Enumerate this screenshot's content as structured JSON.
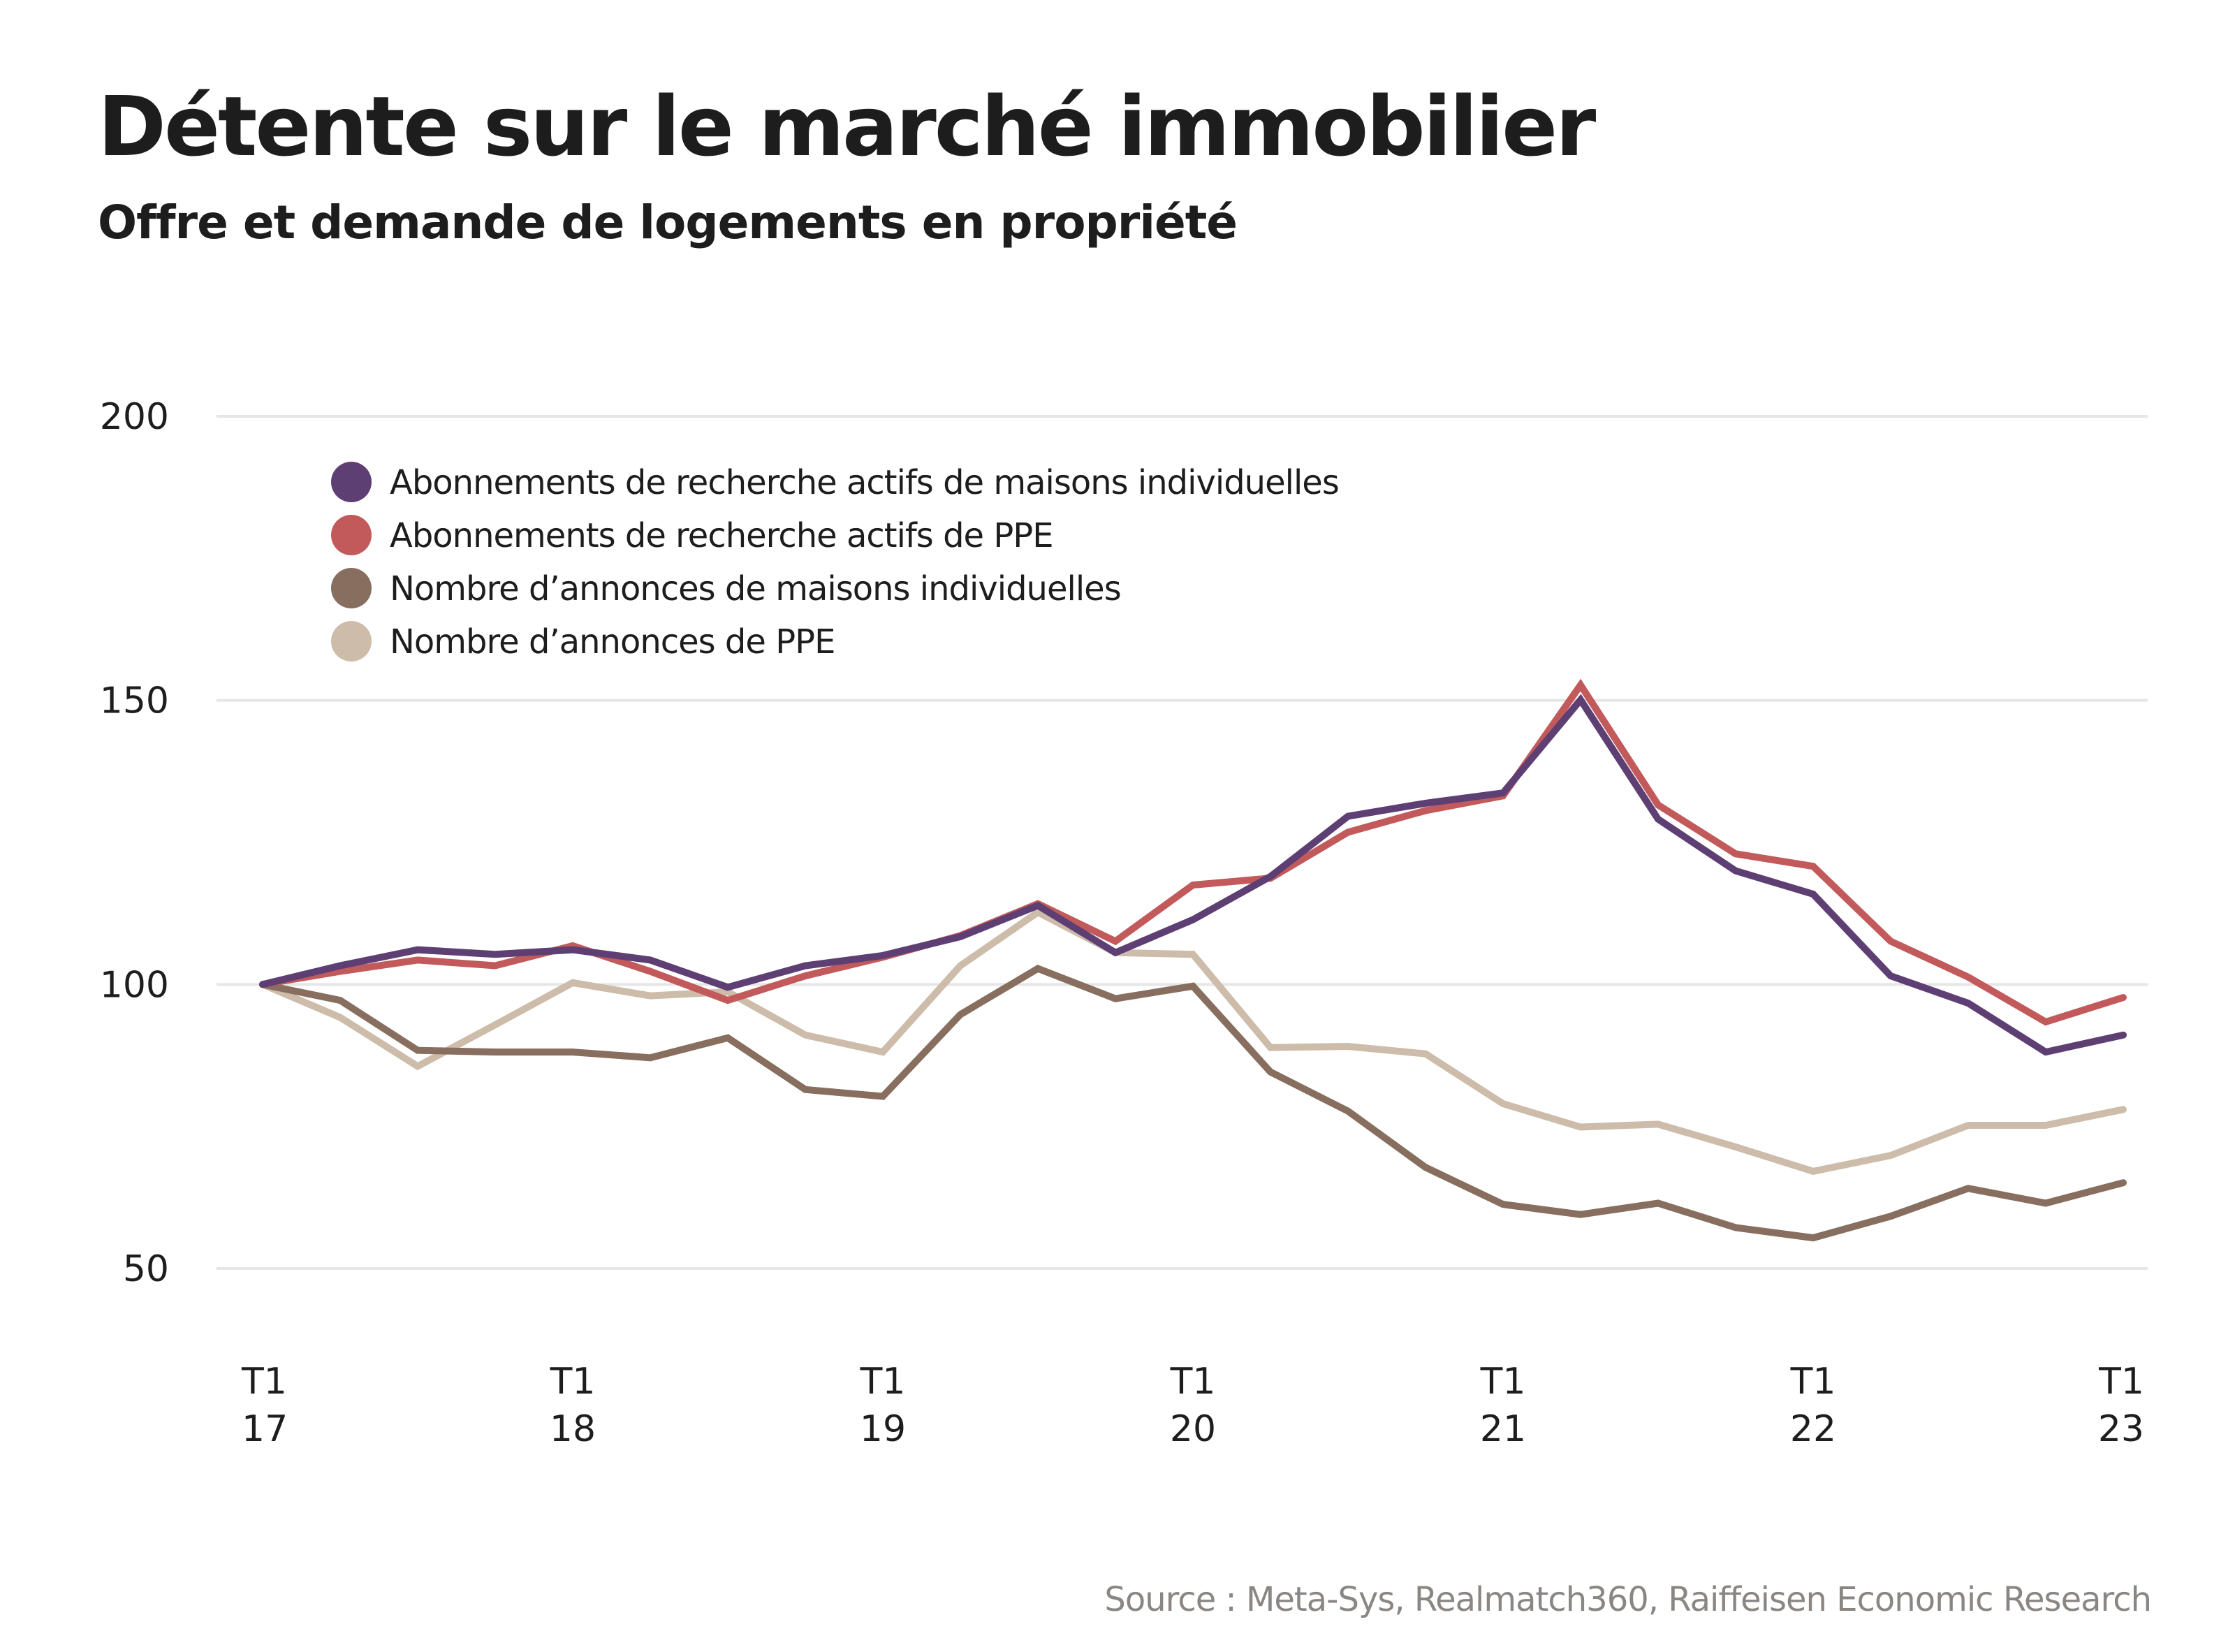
{
  "header": {
    "title": "Détente sur le marché immobilier",
    "subtitle": "Offre et demande de logements en propriété"
  },
  "footer": {
    "source": "Source : Meta-Sys, Realmatch360, Raiffeisen Economic Research"
  },
  "chart_data": {
    "type": "line",
    "title": "Détente sur le marché immobilier",
    "subtitle": "Offre et demande de logements en propriété",
    "xlabel": "",
    "ylabel": "",
    "ylim": [
      50,
      200
    ],
    "yticks": [
      200,
      150,
      100,
      50
    ],
    "grid": true,
    "legend_position": "top-left",
    "x": [
      "T1 17",
      "T2 17",
      "T3 17",
      "T4 17",
      "T1 18",
      "T2 18",
      "T3 18",
      "T4 18",
      "T1 19",
      "T2 19",
      "T3 19",
      "T4 19",
      "T1 20",
      "T2 20",
      "T3 20",
      "T4 20",
      "T1 21",
      "T2 21",
      "T3 21",
      "T4 21",
      "T1 22",
      "T2 22",
      "T3 22",
      "T4 22",
      "T1 23"
    ],
    "xticks": [
      {
        "index": 0,
        "line1": "T1",
        "line2": "17"
      },
      {
        "index": 4,
        "line1": "T1",
        "line2": "18"
      },
      {
        "index": 8,
        "line1": "T1",
        "line2": "19"
      },
      {
        "index": 12,
        "line1": "T1",
        "line2": "20"
      },
      {
        "index": 16,
        "line1": "T1",
        "line2": "21"
      },
      {
        "index": 20,
        "line1": "T1",
        "line2": "22"
      },
      {
        "index": 24,
        "line1": "T1",
        "line2": "23"
      }
    ],
    "series": [
      {
        "name": "Abonnements de recherche actifs de maisons individuelles",
        "color": "#5E3F74",
        "values": [
          100,
          103.3,
          106.1,
          105.3,
          106.1,
          104.3,
          99.5,
          103.3,
          105.1,
          108.4,
          113.9,
          105.6,
          111.4,
          119.0,
          129.6,
          131.9,
          133.7,
          150.1,
          129.1,
          120.0,
          115.9,
          101.5,
          96.7,
          88.1,
          91.1
        ]
      },
      {
        "name": "Abonnements de recherche actifs de PPE",
        "color": "#C25A5B",
        "values": [
          100,
          102.3,
          104.3,
          103.3,
          106.8,
          102.3,
          97.2,
          101.5,
          104.8,
          108.6,
          114.2,
          107.6,
          117.5,
          118.7,
          126.8,
          130.6,
          133.2,
          152.7,
          131.6,
          123.0,
          120.8,
          107.6,
          101.3,
          93.4,
          97.7
        ]
      },
      {
        "name": "Nombre d’annonces de maisons individuelles",
        "color": "#876E5F",
        "values": [
          100,
          97.2,
          88.4,
          88.1,
          88.1,
          87.1,
          90.6,
          81.5,
          80.3,
          94.7,
          102.8,
          97.5,
          99.7,
          84.6,
          77.7,
          67.8,
          61.3,
          59.5,
          61.5,
          57.2,
          55.4,
          59.2,
          64.1,
          61.5,
          65.1
        ]
      },
      {
        "name": "Nombre d’annonces de PPE",
        "color": "#CDBCAA",
        "values": [
          100,
          94.2,
          85.6,
          92.9,
          100.3,
          98.0,
          98.7,
          91.1,
          88.1,
          103.3,
          112.7,
          105.6,
          105.3,
          88.9,
          89.1,
          87.8,
          79.0,
          74.9,
          75.4,
          71.4,
          67.1,
          69.9,
          75.2,
          75.2,
          78.0
        ]
      }
    ]
  }
}
